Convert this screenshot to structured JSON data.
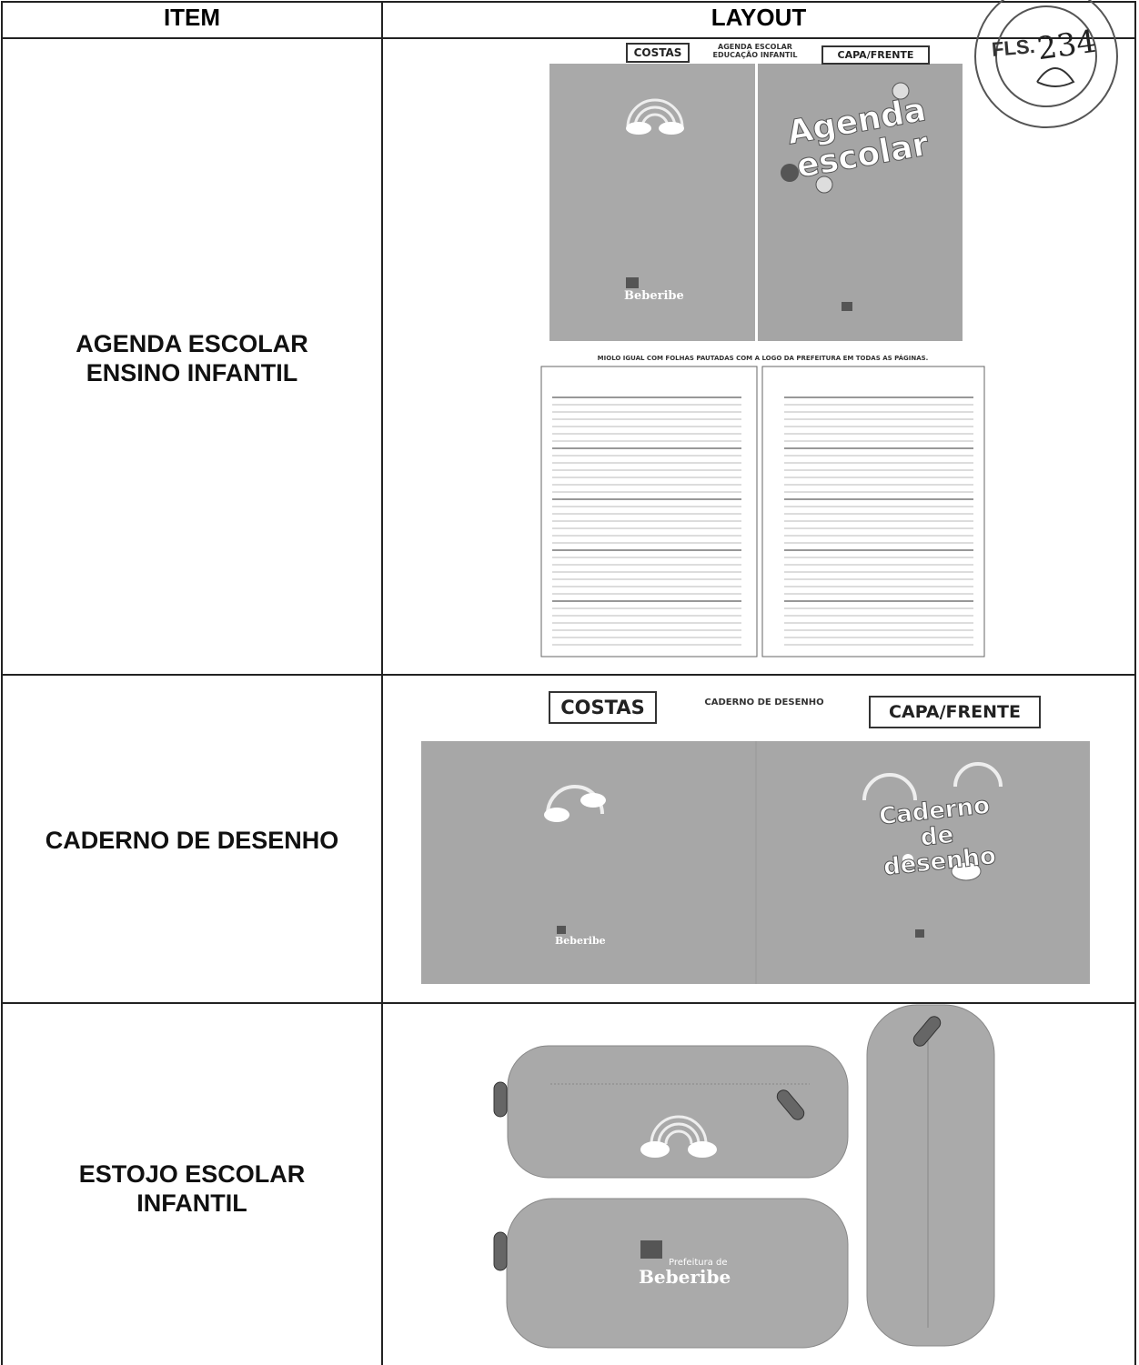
{
  "header": {
    "item": "ITEM",
    "layout": "LAYOUT"
  },
  "stamp": {
    "label": "FLS.",
    "number": "234"
  },
  "rows": [
    {
      "item": "AGENDA ESCOLAR\nENSINO INFANTIL",
      "layout": {
        "back_label": "COSTAS",
        "title": "AGENDA ESCOLAR\nEDUCAÇÃO INFANTIL",
        "front_label": "CAPA/FRENTE",
        "cover_title": "Agenda\nescolar",
        "logo": "Beberibe",
        "note": "MIOLO IGUAL COM FOLHAS PAUTADAS COM A LOGO DA PREFEITURA EM TODAS AS PÁGINAS."
      }
    },
    {
      "item": "CADERNO DE DESENHO",
      "layout": {
        "back_label": "COSTAS",
        "title": "CADERNO DE DESENHO",
        "front_label": "CAPA/FRENTE",
        "cover_title": "Caderno\nde desenho",
        "logo": "Beberibe"
      }
    },
    {
      "item": "ESTOJO ESCOLAR\nINFANTIL",
      "layout": {
        "logo_caption": "Prefeitura de",
        "logo": "Beberibe"
      }
    }
  ]
}
